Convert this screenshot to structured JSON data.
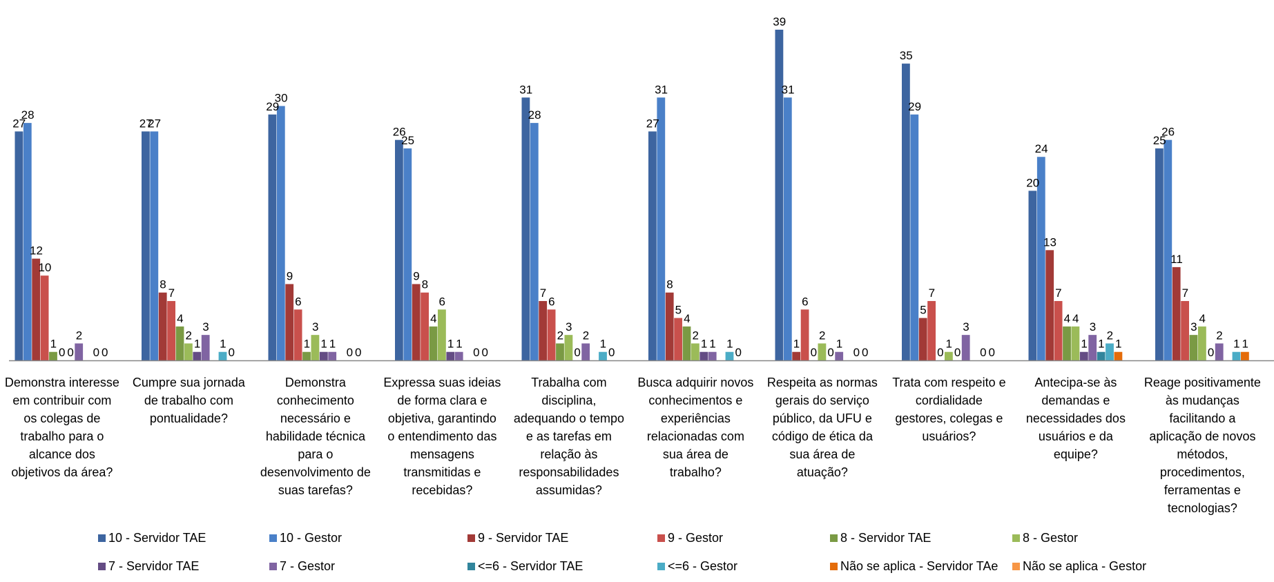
{
  "chart_data": {
    "type": "bar",
    "title": "",
    "xlabel": "",
    "ylabel": "",
    "ylim": [
      0,
      39
    ],
    "grid": false,
    "legend_position": "bottom",
    "categories": [
      [
        "Demonstra interesse",
        "em contribuir com",
        "os colegas de",
        "trabalho para o",
        "alcance dos",
        "objetivos da área?"
      ],
      [
        "Cumpre sua jornada",
        "de trabalho com",
        "pontualidade?"
      ],
      [
        "Demonstra",
        "conhecimento",
        "necessário e",
        "habilidade técnica",
        "para o",
        "desenvolvimento de",
        "suas tarefas?"
      ],
      [
        "Expressa suas ideias",
        "de forma clara e",
        "objetiva, garantindo",
        "o entendimento das",
        "mensagens",
        "transmitidas e",
        "recebidas?"
      ],
      [
        "Trabalha com",
        "disciplina,",
        "adequando o tempo",
        "e as tarefas em",
        "relação às",
        "responsabilidades",
        "assumidas?"
      ],
      [
        "Busca adquirir novos",
        "conhecimentos e",
        "experiências",
        "relacionadas com",
        "sua área de",
        "trabalho?"
      ],
      [
        "Respeita as normas",
        "gerais do serviço",
        "público, da UFU e",
        "código de ética da",
        "sua área de",
        "atuação?"
      ],
      [
        "Trata com respeito e",
        "cordialidade",
        "gestores, colegas e",
        "usuários?"
      ],
      [
        "Antecipa-se às",
        "demandas e",
        "necessidades dos",
        "usuários e da",
        "equipe?"
      ],
      [
        "Reage positivamente",
        "às mudanças",
        "facilitando a",
        "aplicação de novos",
        "métodos,",
        "procedimentos,",
        "ferramentas e",
        "tecnologias?"
      ]
    ],
    "series": [
      {
        "name": "10 - Servidor TAE",
        "color": "#3D65A0",
        "values": [
          27,
          27,
          29,
          26,
          31,
          27,
          39,
          35,
          20,
          25
        ]
      },
      {
        "name": "10 - Gestor",
        "color": "#4A80C8",
        "values": [
          28,
          27,
          30,
          25,
          28,
          31,
          31,
          29,
          24,
          26
        ]
      },
      {
        "name": "9 - Servidor TAE",
        "color": "#A23A37",
        "values": [
          12,
          8,
          9,
          9,
          7,
          8,
          1,
          5,
          13,
          11
        ]
      },
      {
        "name": "9 - Gestor",
        "color": "#C9504C",
        "values": [
          10,
          7,
          6,
          8,
          6,
          5,
          6,
          7,
          7,
          7
        ]
      },
      {
        "name": "8 - Servidor TAE",
        "color": "#7A9A44",
        "values": [
          1,
          4,
          1,
          4,
          2,
          4,
          0,
          0,
          4,
          3
        ]
      },
      {
        "name": "8 - Gestor",
        "color": "#9BBB59",
        "values": [
          0,
          2,
          3,
          6,
          3,
          2,
          2,
          1,
          4,
          4
        ]
      },
      {
        "name": "7 - Servidor TAE",
        "color": "#644C84",
        "values": [
          0,
          1,
          1,
          1,
          0,
          1,
          0,
          0,
          1,
          0
        ]
      },
      {
        "name": "7 - Gestor",
        "color": "#8064A2",
        "values": [
          2,
          3,
          1,
          1,
          2,
          1,
          1,
          3,
          3,
          2
        ]
      },
      {
        "name": "<=6 - Servidor TAE",
        "color": "#31859C",
        "values": [
          0,
          0,
          0,
          0,
          0,
          0,
          0,
          0,
          1,
          0
        ]
      },
      {
        "name": "<=6 - Gestor",
        "color": "#4BACC6",
        "values": [
          0,
          1,
          0,
          0,
          1,
          1,
          0,
          0,
          2,
          1
        ]
      },
      {
        "name": "Não se aplica - Servidor TAe",
        "color": "#E46C0A",
        "values": [
          0,
          0,
          0,
          0,
          0,
          0,
          0,
          0,
          1,
          1
        ]
      },
      {
        "name": "Não se aplica - Gestor",
        "color": "#F79646",
        "values": [
          0,
          0,
          0,
          0,
          0,
          0,
          0,
          0,
          0,
          0
        ]
      }
    ]
  }
}
